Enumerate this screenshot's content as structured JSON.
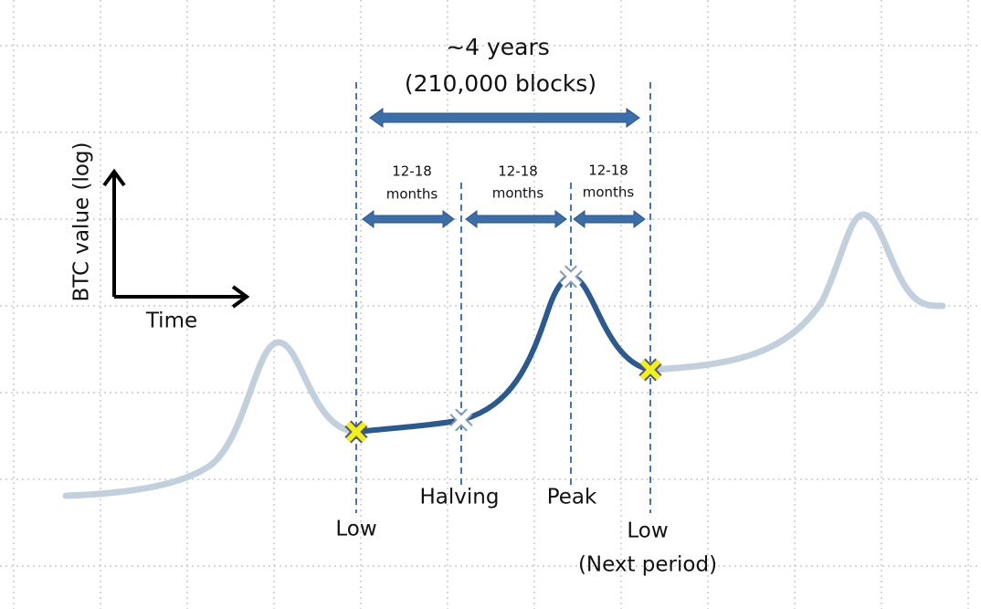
{
  "span": {
    "title": "~4 years",
    "subtitle": "(210,000 blocks)"
  },
  "intervals": [
    {
      "line1": "12-18",
      "line2": "months"
    },
    {
      "line1": "12-18",
      "line2": "months"
    },
    {
      "line1": "12-18",
      "line2": "months"
    }
  ],
  "axes": {
    "y_label": "BTC value (log)",
    "x_label": "Time"
  },
  "markers": [
    {
      "label": "Low"
    },
    {
      "label": "Halving"
    },
    {
      "label": "Peak"
    },
    {
      "label": "Low",
      "note": "(Next period)"
    }
  ]
}
